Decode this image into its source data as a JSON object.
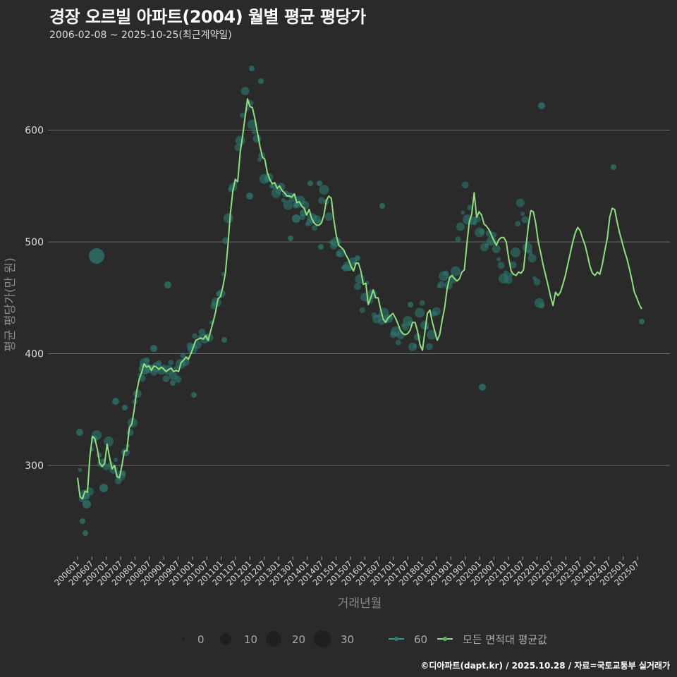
{
  "header": {
    "title": "경장 오르빌 아파트(2004) 월별 평균 평당가",
    "subtitle": "2006-02-08 ~ 2025-10-25(최근계약일)"
  },
  "caption": "©디아파트(dapt.kr) / 2025.10.28 / 자료=국토교통부 실거래가",
  "colors": {
    "background": "#2a2a2b",
    "grid": "#6b6b6b",
    "line": "#8ee07e",
    "points": "#2e7d74"
  },
  "chart_data": {
    "type": "line",
    "title": "경장 오르빌 아파트(2004) 월별 평균 평당가",
    "subtitle": "2006-02-08 ~ 2025-10-25(최근계약일)",
    "xlabel": "거래년월",
    "ylabel": "평균 평당가(만 원)",
    "ylim": [
      215,
      670
    ],
    "yticks": [
      300,
      400,
      500,
      600
    ],
    "xticks": [
      "200601",
      "200607",
      "200701",
      "200707",
      "200801",
      "200807",
      "200901",
      "200907",
      "201001",
      "201007",
      "201101",
      "201107",
      "201201",
      "201207",
      "201301",
      "201307",
      "201401",
      "201407",
      "201501",
      "201507",
      "201601",
      "201607",
      "201701",
      "201707",
      "201801",
      "201807",
      "201901",
      "201907",
      "202001",
      "202007",
      "202101",
      "202107",
      "202201",
      "202207",
      "202301",
      "202307",
      "202401",
      "202407",
      "202501",
      "202507"
    ],
    "grid": true,
    "legend": {
      "position": "bottom",
      "size_title": "",
      "size_entries": [
        "0",
        "10",
        "20",
        "30"
      ],
      "color_entries": [
        "60",
        "모든 면적대 평균값"
      ]
    },
    "series": [
      {
        "name": "모든 면적대 평균값",
        "type": "line",
        "points": [
          [
            "200602",
            289
          ],
          [
            "200603",
            272
          ],
          [
            "200604",
            270
          ],
          [
            "200605",
            277
          ],
          [
            "200606",
            276
          ],
          [
            "200607",
            308
          ],
          [
            "200608",
            326
          ],
          [
            "200609",
            324
          ],
          [
            "200610",
            315
          ],
          [
            "200611",
            302
          ],
          [
            "200612",
            299
          ],
          [
            "200701",
            302
          ],
          [
            "200702",
            319
          ],
          [
            "200703",
            307
          ],
          [
            "200704",
            297
          ],
          [
            "200705",
            300
          ],
          [
            "200706",
            290
          ],
          [
            "200707",
            289
          ],
          [
            "200708",
            300
          ],
          [
            "200709",
            313
          ],
          [
            "200710",
            313
          ],
          [
            "200711",
            334
          ],
          [
            "200712",
            337
          ],
          [
            "200801",
            350
          ],
          [
            "200802",
            366
          ],
          [
            "200803",
            377
          ],
          [
            "200804",
            383
          ],
          [
            "200805",
            391
          ],
          [
            "200806",
            388
          ],
          [
            "200807",
            389
          ],
          [
            "200808",
            385
          ],
          [
            "200809",
            389
          ],
          [
            "200810",
            388
          ],
          [
            "200811",
            386
          ],
          [
            "200812",
            388
          ],
          [
            "200901",
            386
          ],
          [
            "200902",
            384
          ],
          [
            "200903",
            386
          ],
          [
            "200904",
            387
          ],
          [
            "200905",
            384
          ],
          [
            "200906",
            385
          ],
          [
            "200907",
            384
          ],
          [
            "200908",
            392
          ],
          [
            "200909",
            394
          ],
          [
            "200910",
            397
          ],
          [
            "200911",
            395
          ],
          [
            "200912",
            400
          ],
          [
            "201001",
            406
          ],
          [
            "201002",
            412
          ],
          [
            "201003",
            413
          ],
          [
            "201004",
            414
          ],
          [
            "201005",
            413
          ],
          [
            "201006",
            416
          ],
          [
            "201007",
            412
          ],
          [
            "201008",
            420
          ],
          [
            "201009",
            428
          ],
          [
            "201010",
            437
          ],
          [
            "201011",
            449
          ],
          [
            "201012",
            451
          ],
          [
            "201101",
            460
          ],
          [
            "201102",
            472
          ],
          [
            "201103",
            496
          ],
          [
            "201104",
            525
          ],
          [
            "201105",
            545
          ],
          [
            "201106",
            556
          ],
          [
            "201107",
            554
          ],
          [
            "201108",
            580
          ],
          [
            "201109",
            595
          ],
          [
            "201110",
            612
          ],
          [
            "201111",
            628
          ],
          [
            "201112",
            621
          ],
          [
            "201201",
            620
          ],
          [
            "201202",
            610
          ],
          [
            "201203",
            598
          ],
          [
            "201204",
            586
          ],
          [
            "201205",
            576
          ],
          [
            "201206",
            574
          ],
          [
            "201207",
            562
          ],
          [
            "201208",
            556
          ],
          [
            "201209",
            552
          ],
          [
            "201210",
            553
          ],
          [
            "201211",
            548
          ],
          [
            "201212",
            550
          ],
          [
            "201301",
            546
          ],
          [
            "201302",
            544
          ],
          [
            "201303",
            541
          ],
          [
            "201304",
            541
          ],
          [
            "201305",
            540
          ],
          [
            "201306",
            543
          ],
          [
            "201307",
            535
          ],
          [
            "201308",
            536
          ],
          [
            "201309",
            532
          ],
          [
            "201310",
            530
          ],
          [
            "201311",
            524
          ],
          [
            "201312",
            529
          ],
          [
            "201401",
            521
          ],
          [
            "201402",
            517
          ],
          [
            "201403",
            515
          ],
          [
            "201404",
            515
          ],
          [
            "201405",
            517
          ],
          [
            "201406",
            524
          ],
          [
            "201407",
            537
          ],
          [
            "201408",
            541
          ],
          [
            "201409",
            539
          ],
          [
            "201410",
            520
          ],
          [
            "201411",
            506
          ],
          [
            "201412",
            497
          ],
          [
            "201501",
            495
          ],
          [
            "201502",
            493
          ],
          [
            "201503",
            488
          ],
          [
            "201504",
            484
          ],
          [
            "201505",
            478
          ],
          [
            "201506",
            474
          ],
          [
            "201507",
            481
          ],
          [
            "201508",
            481
          ],
          [
            "201509",
            474
          ],
          [
            "201510",
            462
          ],
          [
            "201511",
            463
          ],
          [
            "201512",
            444
          ],
          [
            "201601",
            450
          ],
          [
            "201602",
            457
          ],
          [
            "201603",
            450
          ],
          [
            "201604",
            450
          ],
          [
            "201605",
            440
          ],
          [
            "201606",
            431
          ],
          [
            "201607",
            428
          ],
          [
            "201608",
            432
          ],
          [
            "201609",
            434
          ],
          [
            "201610",
            436
          ],
          [
            "201611",
            432
          ],
          [
            "201612",
            427
          ],
          [
            "201701",
            421
          ],
          [
            "201702",
            418
          ],
          [
            "201703",
            417
          ],
          [
            "201704",
            418
          ],
          [
            "201705",
            421
          ],
          [
            "201706",
            428
          ],
          [
            "201707",
            428
          ],
          [
            "201708",
            420
          ],
          [
            "201709",
            408
          ],
          [
            "201710",
            403
          ],
          [
            "201711",
            420
          ],
          [
            "201712",
            436
          ],
          [
            "201801",
            439
          ],
          [
            "201802",
            428
          ],
          [
            "201803",
            420
          ],
          [
            "201804",
            412
          ],
          [
            "201805",
            417
          ],
          [
            "201806",
            430
          ],
          [
            "201807",
            441
          ],
          [
            "201808",
            458
          ],
          [
            "201809",
            468
          ],
          [
            "201810",
            470
          ],
          [
            "201811",
            467
          ],
          [
            "201812",
            465
          ],
          [
            "201901",
            467
          ],
          [
            "201902",
            473
          ],
          [
            "201903",
            475
          ],
          [
            "201904",
            498
          ],
          [
            "201905",
            518
          ],
          [
            "201906",
            525
          ],
          [
            "201907",
            544
          ],
          [
            "201908",
            522
          ],
          [
            "201909",
            527
          ],
          [
            "201910",
            524
          ],
          [
            "201911",
            516
          ],
          [
            "201912",
            514
          ],
          [
            "202001",
            511
          ],
          [
            "202002",
            506
          ],
          [
            "202003",
            501
          ],
          [
            "202004",
            497
          ],
          [
            "202005",
            502
          ],
          [
            "202006",
            504
          ],
          [
            "202007",
            504
          ],
          [
            "202008",
            500
          ],
          [
            "202009",
            485
          ],
          [
            "202010",
            474
          ],
          [
            "202011",
            471
          ],
          [
            "202012",
            470
          ],
          [
            "202101",
            473
          ],
          [
            "202102",
            472
          ],
          [
            "202103",
            475
          ],
          [
            "202104",
            495
          ],
          [
            "202105",
            515
          ],
          [
            "202106",
            528
          ],
          [
            "202107",
            527
          ],
          [
            "202108",
            516
          ],
          [
            "202109",
            500
          ],
          [
            "202110",
            490
          ],
          [
            "202111",
            479
          ],
          [
            "202112",
            470
          ],
          [
            "202201",
            461
          ],
          [
            "202202",
            451
          ],
          [
            "202203",
            443
          ]
        ],
        "note": "Series values are approximate readings along x positions; points listed sequentially from first to last month shown."
      },
      {
        "name": "60",
        "type": "scatter",
        "description": "Individual monthly average points for 60 area band, bubble size = transaction count (0–30). Values roughly follow the line with scatter between ~238 and ~655."
      }
    ]
  }
}
